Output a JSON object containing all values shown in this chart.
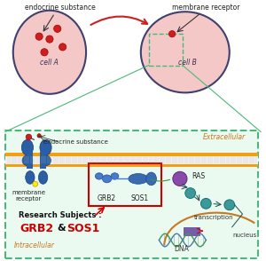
{
  "bg_color": "#ffffff",
  "cell_a_label": "cell A",
  "cell_b_label": "cell B",
  "top_label_endocrine": "endocrine substance",
  "top_label_receptor": "membrane receptor",
  "extracellular_label": "Extracellular",
  "extracellular_color": "#c87820",
  "intracellular_label": "Intracellular",
  "intracellular_color": "#c87820",
  "endocrine_sub_label": "endocrine substance",
  "grb2_label": "GRB2",
  "sos1_label": "SOS1",
  "ras_label": "RAS",
  "research_subjects_text": "Research Subjects :",
  "grb2_red": "GRB2",
  "sos1_red": "SOS1",
  "transcription_label": "transcription",
  "nucleus_label": "nucleus",
  "dna_label": "DNA",
  "blue_protein": "#2a5fa5",
  "teal_color": "#3a9a9a",
  "purple_color": "#8a4aaa",
  "red_color": "#cc0000",
  "green_box_color": "#4ab87a",
  "membrane_receptor_label": "membrane\nreceptor"
}
